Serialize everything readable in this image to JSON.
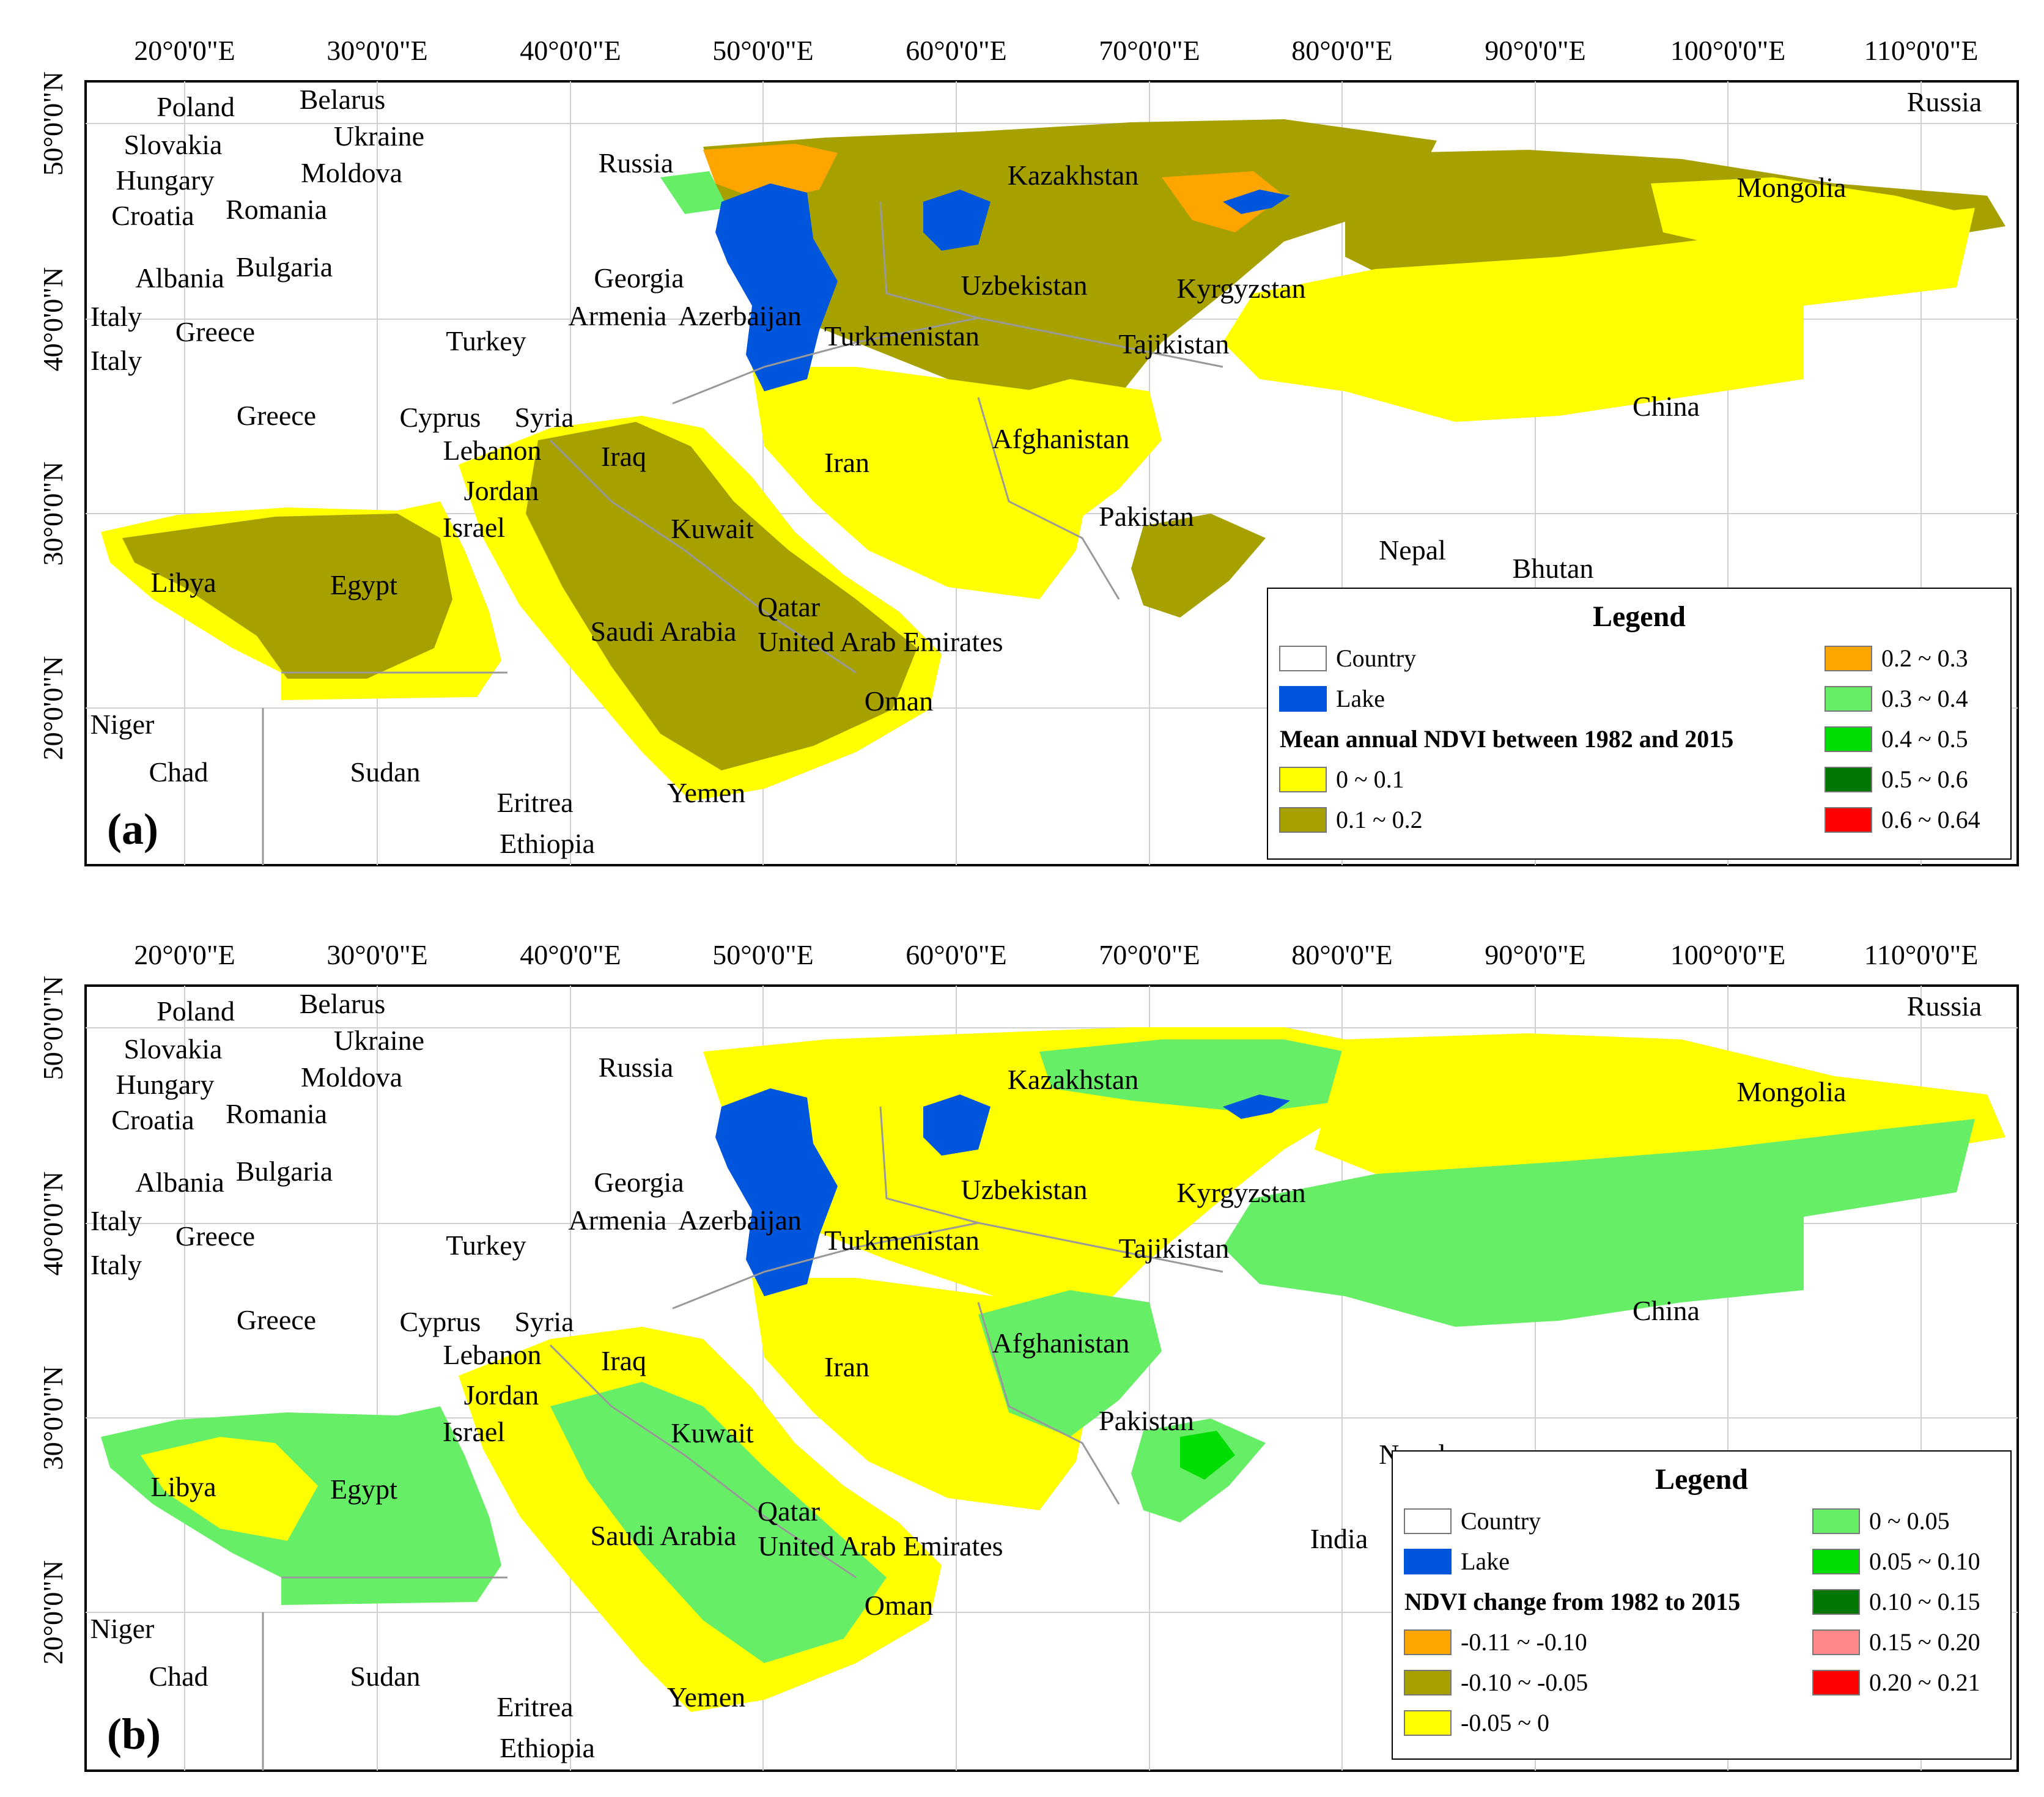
{
  "lon_labels": [
    "20°0'0\"E",
    "30°0'0\"E",
    "40°0'0\"E",
    "50°0'0\"E",
    "60°0'0\"E",
    "70°0'0\"E",
    "80°0'0\"E",
    "90°0'0\"E",
    "100°0'0\"E",
    "110°0'0\"E"
  ],
  "lat_labels": [
    "50°0'0\"N",
    "40°0'0\"N",
    "30°0'0\"N",
    "20°0'0\"N"
  ],
  "country_labels": [
    "Poland",
    "Belarus",
    "Ukraine",
    "Slovakia",
    "Hungary",
    "Moldova",
    "Croatia",
    "Romania",
    "Albania",
    "Bulgaria",
    "Italy",
    "Italy",
    "Greece",
    "Greece",
    "Turkey",
    "Georgia",
    "Armenia",
    "Azerbaijan",
    "Russia",
    "Kazakhstan",
    "Uzbekistan",
    "Kyrgyzstan",
    "Turkmenistan",
    "Tajikistan",
    "Mongolia",
    "China",
    "Russia",
    "Cyprus",
    "Syria",
    "Lebanon",
    "Iraq",
    "Iran",
    "Jordan",
    "Israel",
    "Kuwait",
    "Afghanistan",
    "Pakistan",
    "Nepal",
    "Bhutan",
    "Libya",
    "Egypt",
    "Saudi Arabia",
    "Qatar",
    "United Arab Emirates",
    "Oman",
    "Niger",
    "Chad",
    "Sudan",
    "Eritrea",
    "Ethiopia",
    "Yemen"
  ],
  "panel_a": {
    "tag": "(a)",
    "legend": {
      "title": "Legend",
      "country": "Country",
      "lake": "Lake",
      "subtitle": "Mean annual NDVI between 1982 and 2015",
      "classes": [
        {
          "label": "0 ~ 0.1",
          "color": "#ffff00"
        },
        {
          "label": "0.1 ~ 0.2",
          "color": "#a6a000"
        },
        {
          "label": "0.2 ~ 0.3",
          "color": "#ffa500"
        },
        {
          "label": "0.3 ~ 0.4",
          "color": "#66ee66"
        },
        {
          "label": "0.4 ~ 0.5",
          "color": "#00dd00"
        },
        {
          "label": "0.5 ~ 0.6",
          "color": "#007700"
        },
        {
          "label": "0.6 ~ 0.64",
          "color": "#ff0000"
        }
      ]
    }
  },
  "panel_b": {
    "tag": "(b)",
    "extra_label": "India",
    "legend": {
      "title": "Legend",
      "country": "Country",
      "lake": "Lake",
      "subtitle": "NDVI change from 1982 to 2015",
      "classes": [
        {
          "label": "-0.11 ~ -0.10",
          "color": "#ffa500"
        },
        {
          "label": "-0.10 ~ -0.05",
          "color": "#a6a000"
        },
        {
          "label": "-0.05 ~ 0",
          "color": "#ffff00"
        },
        {
          "label": "0 ~ 0.05",
          "color": "#66ee66"
        },
        {
          "label": "0.05 ~ 0.10",
          "color": "#00dd00"
        },
        {
          "label": "0.10 ~ 0.15",
          "color": "#007700"
        },
        {
          "label": "0.15 ~ 0.20",
          "color": "#ff8888"
        },
        {
          "label": "0.20 ~ 0.21",
          "color": "#ff0000"
        }
      ]
    }
  },
  "colors": {
    "lake": "#0055dd",
    "country_fill": "#ffffff",
    "border": "#999999"
  }
}
